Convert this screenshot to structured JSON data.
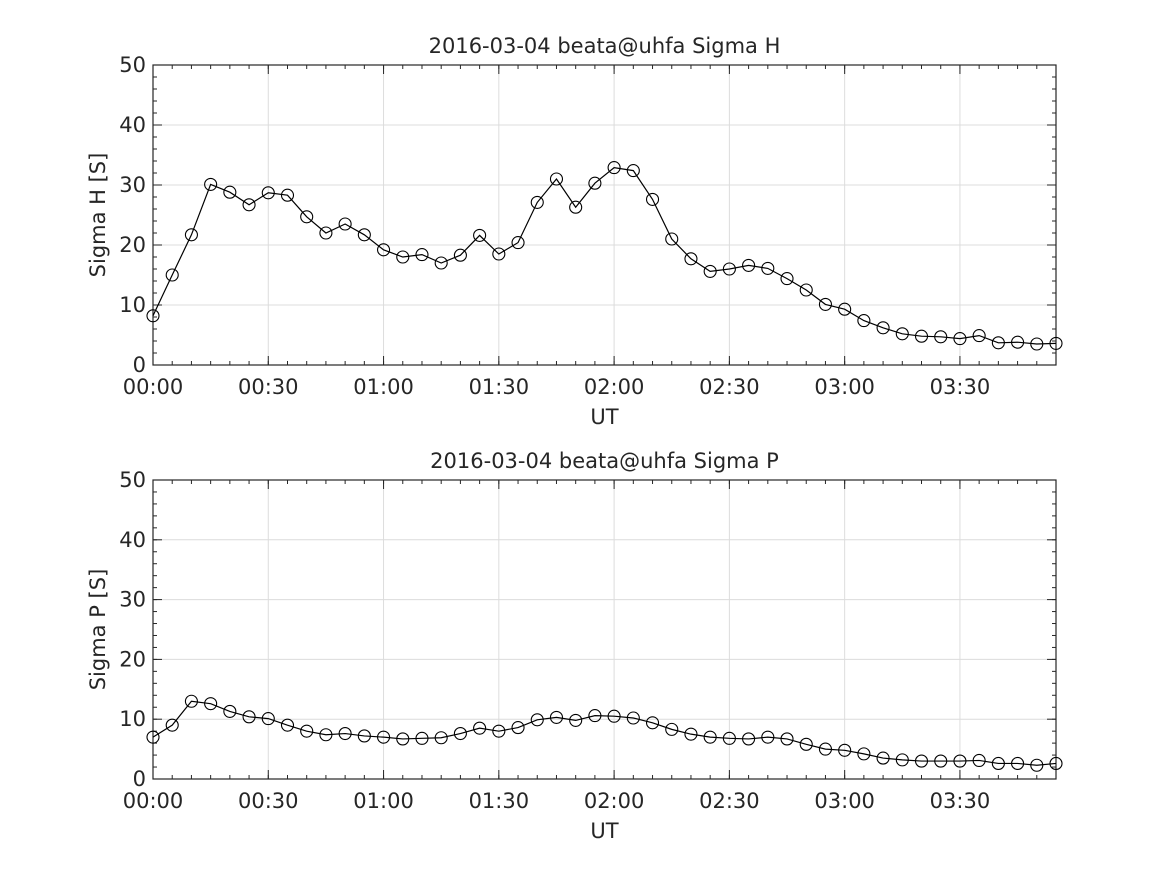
{
  "chart_data": [
    {
      "type": "line",
      "title": "2016-03-04  beata@uhfa Sigma H",
      "xlabel": "UT",
      "ylabel": "Sigma H [S]",
      "xlim": [
        "00:00",
        "03:55"
      ],
      "ylim": [
        0,
        50
      ],
      "x_ticks": [
        "00:00",
        "00:30",
        "01:00",
        "01:30",
        "02:00",
        "02:30",
        "03:00",
        "03:30"
      ],
      "y_ticks": [
        0,
        10,
        20,
        30,
        40,
        50
      ],
      "grid": true,
      "marker": "open-circle",
      "line_color": "#000000",
      "x": [
        "00:00",
        "00:05",
        "00:10",
        "00:15",
        "00:20",
        "00:25",
        "00:30",
        "00:35",
        "00:40",
        "00:45",
        "00:50",
        "00:55",
        "01:00",
        "01:05",
        "01:10",
        "01:15",
        "01:20",
        "01:25",
        "01:30",
        "01:35",
        "01:40",
        "01:45",
        "01:50",
        "01:55",
        "02:00",
        "02:05",
        "02:10",
        "02:15",
        "02:20",
        "02:25",
        "02:30",
        "02:35",
        "02:40",
        "02:45",
        "02:50",
        "02:55",
        "03:00",
        "03:05",
        "03:10",
        "03:15",
        "03:20",
        "03:25",
        "03:30",
        "03:35",
        "03:40",
        "03:45",
        "03:50",
        "03:55"
      ],
      "values": [
        8.2,
        15.0,
        21.7,
        30.1,
        28.8,
        26.7,
        28.7,
        28.3,
        24.7,
        22.0,
        23.5,
        21.7,
        19.2,
        18.0,
        18.4,
        17.0,
        18.3,
        21.6,
        18.5,
        20.4,
        27.1,
        31.0,
        26.3,
        30.3,
        32.9,
        32.4,
        27.6,
        21.0,
        17.7,
        15.6,
        16.0,
        16.6,
        16.1,
        14.4,
        12.5,
        10.1,
        9.3,
        7.4,
        6.2,
        5.2,
        4.8,
        4.7,
        4.4,
        4.9,
        3.7,
        3.8,
        3.5,
        3.6
      ]
    },
    {
      "type": "line",
      "title": "2016-03-04  beata@uhfa Sigma P",
      "xlabel": "UT",
      "ylabel": "Sigma P [S]",
      "xlim": [
        "00:00",
        "03:55"
      ],
      "ylim": [
        0,
        50
      ],
      "x_ticks": [
        "00:00",
        "00:30",
        "01:00",
        "01:30",
        "02:00",
        "02:30",
        "03:00",
        "03:30"
      ],
      "y_ticks": [
        0,
        10,
        20,
        30,
        40,
        50
      ],
      "grid": true,
      "marker": "open-circle",
      "line_color": "#000000",
      "x": [
        "00:00",
        "00:05",
        "00:10",
        "00:15",
        "00:20",
        "00:25",
        "00:30",
        "00:35",
        "00:40",
        "00:45",
        "00:50",
        "00:55",
        "01:00",
        "01:05",
        "01:10",
        "01:15",
        "01:20",
        "01:25",
        "01:30",
        "01:35",
        "01:40",
        "01:45",
        "01:50",
        "01:55",
        "02:00",
        "02:05",
        "02:10",
        "02:15",
        "02:20",
        "02:25",
        "02:30",
        "02:35",
        "02:40",
        "02:45",
        "02:50",
        "02:55",
        "03:00",
        "03:05",
        "03:10",
        "03:15",
        "03:20",
        "03:25",
        "03:30",
        "03:35",
        "03:40",
        "03:45",
        "03:50",
        "03:55"
      ],
      "values": [
        7.0,
        9.0,
        13.0,
        12.6,
        11.3,
        10.4,
        10.1,
        9.0,
        8.0,
        7.4,
        7.6,
        7.2,
        7.0,
        6.7,
        6.8,
        6.9,
        7.6,
        8.5,
        8.0,
        8.6,
        9.9,
        10.3,
        9.8,
        10.6,
        10.5,
        10.2,
        9.4,
        8.3,
        7.5,
        7.0,
        6.8,
        6.7,
        7.0,
        6.7,
        5.8,
        5.0,
        4.8,
        4.2,
        3.5,
        3.2,
        3.0,
        3.0,
        3.0,
        3.1,
        2.6,
        2.6,
        2.3,
        2.6
      ]
    }
  ]
}
